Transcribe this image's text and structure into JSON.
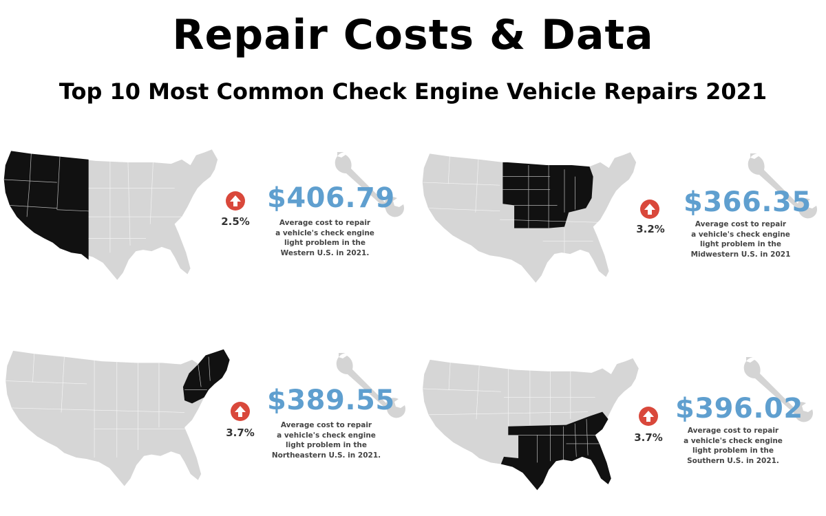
{
  "header": {
    "title": "Repair Costs & Data",
    "subtitle": "Top 10 Most Common Check Engine Vehicle Repairs 2021"
  },
  "colors": {
    "map_base": "#d6d6d6",
    "map_highlight": "#111111",
    "price": "#5f9fcf",
    "arrow_badge": "#d9483b",
    "wrench": "#d4d4d4"
  },
  "panels": [
    {
      "region": "Western",
      "percent": "2.5%",
      "price": "$406.79",
      "desc_lines": [
        "Average cost to repair",
        "a vehicle's check engine",
        "light problem in the",
        "Western U.S. in 2021."
      ]
    },
    {
      "region": "Midwestern",
      "percent": "3.2%",
      "price": "$366.35",
      "desc_lines": [
        "Average cost to repair",
        "a vehicle's check engine",
        "light problem in the",
        "Midwestern U.S. in 2021"
      ]
    },
    {
      "region": "Northeastern",
      "percent": "3.7%",
      "price": "$389.55",
      "desc_lines": [
        "Average cost to repair",
        "a vehicle's check engine",
        "light problem in the",
        "Northeastern U.S. in 2021."
      ]
    },
    {
      "region": "Southern",
      "percent": "3.7%",
      "price": "$396.02",
      "desc_lines": [
        "Average cost to repair",
        "a vehicle's check engine",
        "light problem in the",
        "Southern U.S. in 2021."
      ]
    }
  ],
  "icons": {
    "trend": "arrow-up-icon",
    "tool": "wrench-icon",
    "map": "us-map-icon"
  }
}
